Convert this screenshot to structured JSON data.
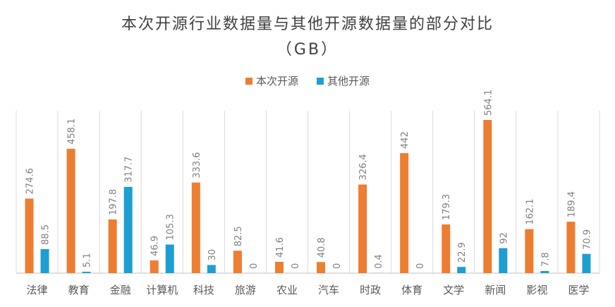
{
  "chart_data": {
    "type": "bar",
    "title": "本次开源行业数据量与其他开源数据量的部分对比",
    "subtitle": "（GB）",
    "categories": [
      "法律",
      "教育",
      "金融",
      "计算机",
      "科技",
      "旅游",
      "农业",
      "汽车",
      "时政",
      "体育",
      "文学",
      "新闻",
      "影视",
      "医学"
    ],
    "series": [
      {
        "name": "本次开源",
        "color": "#ED7D31",
        "values": [
          274.6,
          458.1,
          197.8,
          46.9,
          333.6,
          82.5,
          41.6,
          40.8,
          326.4,
          442,
          179.3,
          564.1,
          162.1,
          189.4
        ]
      },
      {
        "name": "其他开源",
        "color": "#1F9ED1",
        "values": [
          88.5,
          5.1,
          317.7,
          105.3,
          30,
          0,
          0,
          0,
          0.4,
          0,
          22.9,
          92,
          7.8,
          70.9
        ]
      }
    ],
    "ylim": [
      0,
      564.1
    ],
    "grid": "vertical-category-dividers",
    "legend": "top-center"
  }
}
